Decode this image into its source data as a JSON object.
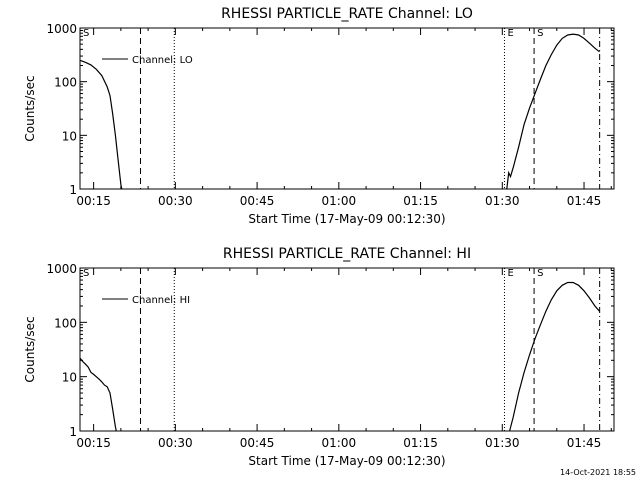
{
  "footer": {
    "timestamp": "14-Oct-2021 18:55"
  },
  "chart_data": [
    {
      "type": "line",
      "title": "RHESSI PARTICLE_RATE Channel: LO",
      "xlabel": "Start Time (17-May-09 00:12:30)",
      "ylabel": "Counts/sec",
      "yscale": "log",
      "xlim": [
        "00:12:30",
        "01:50:30"
      ],
      "ylim": [
        1,
        1000
      ],
      "xticks": [
        "00:15",
        "00:30",
        "00:45",
        "01:00",
        "01:15",
        "01:30",
        "01:45"
      ],
      "yticks": [
        {
          "value": 1,
          "label": "1"
        },
        {
          "value": 10,
          "label": "10"
        },
        {
          "value": 100,
          "label": "100"
        },
        {
          "value": 1000,
          "label": "1000"
        }
      ],
      "grid": false,
      "legend": {
        "placement": "top-left",
        "entries": [
          "Channel: LO"
        ]
      },
      "markers": [
        {
          "label": "S",
          "time": "00:12:30",
          "style": "dashed"
        },
        {
          "label": "",
          "time": "00:23:36",
          "style": "dashed"
        },
        {
          "label": "",
          "time": "00:29:48",
          "style": "dotted"
        },
        {
          "label": "E",
          "time": "01:30:24",
          "style": "dotted"
        },
        {
          "label": "S",
          "time": "01:35:50",
          "style": "dashed"
        },
        {
          "label": "",
          "time": "01:47:52",
          "style": "dash-dot"
        }
      ],
      "series": [
        {
          "name": "Channel: LO",
          "segments": [
            [
              {
                "x": "00:12:30",
                "y": 250
              },
              {
                "x": "00:13:30",
                "y": 230
              },
              {
                "x": "00:14:30",
                "y": 205
              },
              {
                "x": "00:15:30",
                "y": 170
              },
              {
                "x": "00:16:30",
                "y": 130
              },
              {
                "x": "00:17:30",
                "y": 80
              },
              {
                "x": "00:18:00",
                "y": 55
              },
              {
                "x": "00:18:30",
                "y": 25
              },
              {
                "x": "00:19:00",
                "y": 10
              },
              {
                "x": "00:19:30",
                "y": 3.5
              },
              {
                "x": "00:20:00",
                "y": 1.2
              },
              {
                "x": "00:20:10",
                "y": 1
              }
            ],
            [
              {
                "x": "01:30:50",
                "y": 1
              },
              {
                "x": "01:31:10",
                "y": 2.0
              },
              {
                "x": "01:31:30",
                "y": 1.7
              },
              {
                "x": "01:32:00",
                "y": 2.5
              },
              {
                "x": "01:33:00",
                "y": 6
              },
              {
                "x": "01:34:00",
                "y": 16
              },
              {
                "x": "01:35:00",
                "y": 32
              },
              {
                "x": "01:36:00",
                "y": 60
              },
              {
                "x": "01:37:00",
                "y": 110
              },
              {
                "x": "01:38:00",
                "y": 200
              },
              {
                "x": "01:39:00",
                "y": 320
              },
              {
                "x": "01:40:00",
                "y": 480
              },
              {
                "x": "01:41:00",
                "y": 640
              },
              {
                "x": "01:42:00",
                "y": 740
              },
              {
                "x": "01:43:00",
                "y": 770
              },
              {
                "x": "01:44:00",
                "y": 740
              },
              {
                "x": "01:45:00",
                "y": 640
              },
              {
                "x": "01:46:00",
                "y": 520
              },
              {
                "x": "01:47:00",
                "y": 420
              },
              {
                "x": "01:47:50",
                "y": 360
              }
            ]
          ]
        }
      ]
    },
    {
      "type": "line",
      "title": "RHESSI PARTICLE_RATE Channel: HI",
      "xlabel": "Start Time (17-May-09 00:12:30)",
      "ylabel": "Counts/sec",
      "yscale": "log",
      "xlim": [
        "00:12:30",
        "01:50:30"
      ],
      "ylim": [
        1,
        1000
      ],
      "xticks": [
        "00:15",
        "00:30",
        "00:45",
        "01:00",
        "01:15",
        "01:30",
        "01:45"
      ],
      "yticks": [
        {
          "value": 1,
          "label": "1"
        },
        {
          "value": 10,
          "label": "10"
        },
        {
          "value": 100,
          "label": "100"
        },
        {
          "value": 1000,
          "label": "1000"
        }
      ],
      "grid": false,
      "legend": {
        "placement": "top-left",
        "entries": [
          "Channel: HI"
        ]
      },
      "markers": [
        {
          "label": "S",
          "time": "00:12:30",
          "style": "dashed"
        },
        {
          "label": "",
          "time": "00:23:36",
          "style": "dashed"
        },
        {
          "label": "",
          "time": "00:29:48",
          "style": "dotted"
        },
        {
          "label": "E",
          "time": "01:30:24",
          "style": "dotted"
        },
        {
          "label": "S",
          "time": "01:35:50",
          "style": "dashed"
        },
        {
          "label": "",
          "time": "01:47:52",
          "style": "dash-dot"
        }
      ],
      "series": [
        {
          "name": "Channel: HI",
          "segments": [
            [
              {
                "x": "00:12:30",
                "y": 22
              },
              {
                "x": "00:13:00",
                "y": 19
              },
              {
                "x": "00:13:30",
                "y": 17
              },
              {
                "x": "00:14:00",
                "y": 15
              },
              {
                "x": "00:14:30",
                "y": 12
              },
              {
                "x": "00:15:00",
                "y": 11
              },
              {
                "x": "00:15:30",
                "y": 10
              },
              {
                "x": "00:16:00",
                "y": 9
              },
              {
                "x": "00:16:30",
                "y": 8
              },
              {
                "x": "00:17:00",
                "y": 7
              },
              {
                "x": "00:17:30",
                "y": 6.5
              },
              {
                "x": "00:18:00",
                "y": 5
              },
              {
                "x": "00:18:30",
                "y": 2.5
              },
              {
                "x": "00:19:00",
                "y": 1.2
              },
              {
                "x": "00:19:10",
                "y": 1
              }
            ],
            [
              {
                "x": "01:31:20",
                "y": 1
              },
              {
                "x": "01:32:00",
                "y": 1.8
              },
              {
                "x": "01:33:00",
                "y": 5
              },
              {
                "x": "01:34:00",
                "y": 12
              },
              {
                "x": "01:35:00",
                "y": 25
              },
              {
                "x": "01:36:00",
                "y": 50
              },
              {
                "x": "01:37:00",
                "y": 90
              },
              {
                "x": "01:38:00",
                "y": 160
              },
              {
                "x": "01:39:00",
                "y": 260
              },
              {
                "x": "01:40:00",
                "y": 380
              },
              {
                "x": "01:41:00",
                "y": 480
              },
              {
                "x": "01:42:00",
                "y": 540
              },
              {
                "x": "01:43:00",
                "y": 540
              },
              {
                "x": "01:44:00",
                "y": 480
              },
              {
                "x": "01:45:00",
                "y": 380
              },
              {
                "x": "01:46:00",
                "y": 280
              },
              {
                "x": "01:47:00",
                "y": 200
              },
              {
                "x": "01:47:50",
                "y": 160
              }
            ]
          ]
        }
      ]
    }
  ]
}
